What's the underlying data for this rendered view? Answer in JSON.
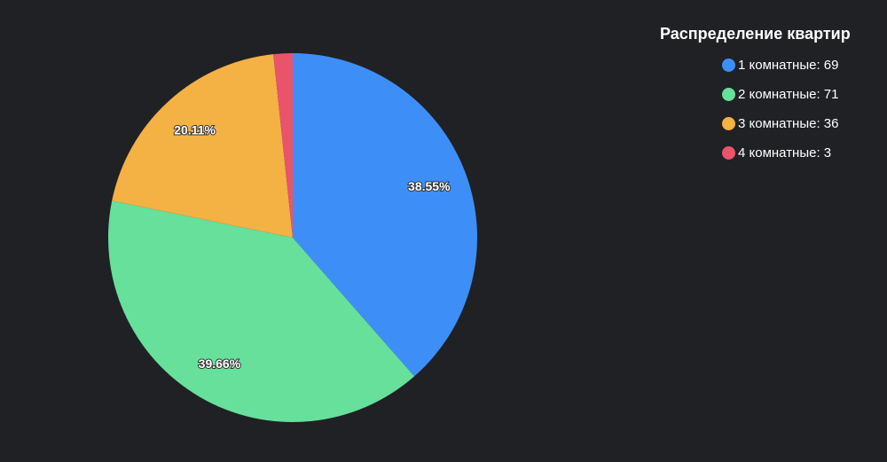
{
  "chart_data": {
    "type": "pie",
    "title": "Распределение квартир",
    "legend_position": "top-right",
    "start_angle": "top, clockwise",
    "slices": [
      {
        "label": "1 комнатные: 69",
        "value": 69,
        "percent_label": "38.55%",
        "color": "#3e8ef7"
      },
      {
        "label": "2 комнатные: 71",
        "value": 71,
        "percent_label": "39.66%",
        "color": "#66e09b"
      },
      {
        "label": "3 комнатные: 36",
        "value": 36,
        "percent_label": "20.11%",
        "color": "#f4b144"
      },
      {
        "label": "4 комнатные: 3",
        "value": 3,
        "percent_label": "",
        "color": "#e9546b"
      }
    ]
  }
}
